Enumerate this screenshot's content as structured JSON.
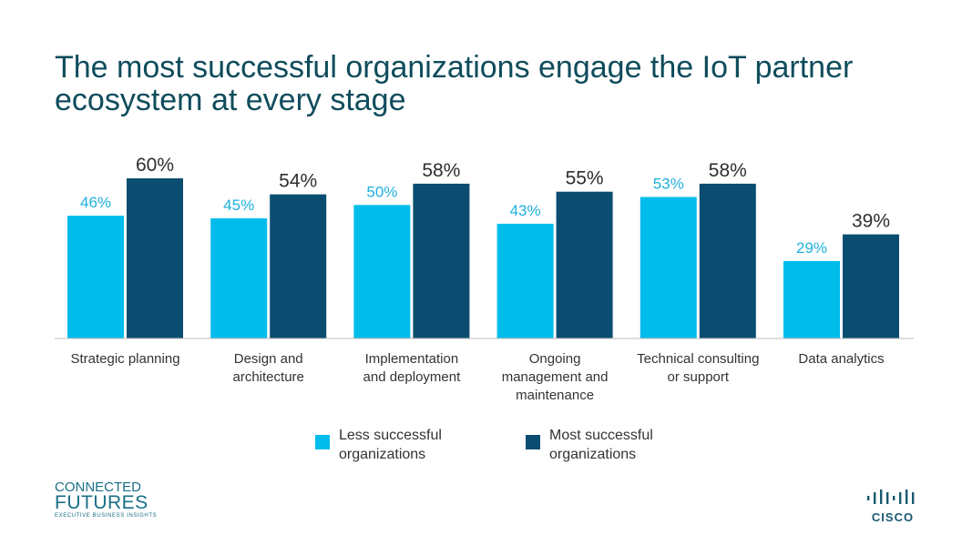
{
  "title": "The most successful organizations engage the IoT partner ecosystem at every stage",
  "colors": {
    "less": "#00bceb",
    "most": "#0b4d70",
    "title": "#0f4c5c"
  },
  "chart_data": {
    "type": "bar",
    "title": "The most successful organizations engage the IoT partner ecosystem at every stage",
    "categories": [
      "Strategic planning",
      "Design and architecture",
      "Implementation and deployment",
      "Ongoing management and maintenance",
      "Technical consulting or support",
      "Data analytics"
    ],
    "category_lines": [
      [
        "Strategic planning"
      ],
      [
        "Design and",
        "architecture"
      ],
      [
        "Implementation",
        "and deployment"
      ],
      [
        "Ongoing",
        "management and",
        "maintenance"
      ],
      [
        "Technical consulting",
        "or support"
      ],
      [
        "Data analytics"
      ]
    ],
    "series": [
      {
        "name": "Less successful organizations",
        "values": [
          46,
          45,
          50,
          43,
          53,
          29
        ],
        "labels": [
          "46%",
          "45%",
          "50%",
          "43%",
          "53%",
          "29%"
        ]
      },
      {
        "name": "Most successful organizations",
        "values": [
          60,
          54,
          58,
          55,
          58,
          39
        ],
        "labels": [
          "60%",
          "54%",
          "58%",
          "55%",
          "58%",
          "39%"
        ]
      }
    ],
    "ylim": [
      0,
      60
    ],
    "xlabel": "",
    "ylabel": "",
    "grid": false,
    "legend": "bottom"
  },
  "legend": [
    {
      "text": "Less successful\norganizations"
    },
    {
      "text": "Most successful\norganizations"
    }
  ],
  "logos": {
    "left": {
      "line1": "CONNECTED",
      "line2": "FUTURES",
      "line3": "EXECUTIVE BUSINESS INSIGHTS"
    },
    "right": {
      "word": "CISCO",
      "icon": "cisco-bars-icon"
    }
  }
}
